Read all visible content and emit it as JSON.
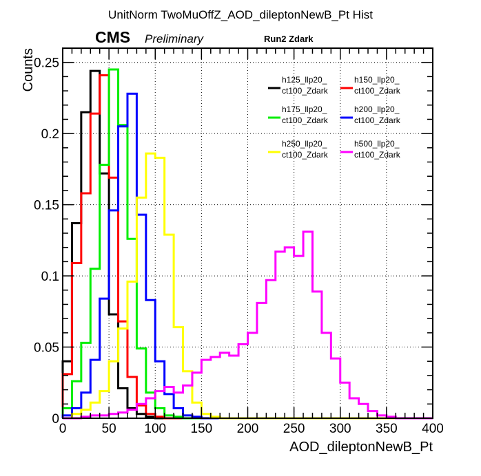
{
  "title": "UnitNorm TwoMuOffZ_AOD_dileptonNewB_Pt Hist",
  "cms_label": "CMS",
  "preliminary_label": "Preliminary",
  "run_label": "Run2 Zdark",
  "chart_data": {
    "type": "histogram-step",
    "title": "UnitNorm TwoMuOffZ_AOD_dileptonNewB_Pt Hist",
    "xlabel": "AOD_dileptonNewB_Pt",
    "ylabel": "Counts",
    "xlim": [
      0,
      400
    ],
    "ylim": [
      0,
      0.26
    ],
    "bin_width": 10,
    "x_ticks": [
      0,
      50,
      100,
      150,
      200,
      250,
      300,
      350,
      400
    ],
    "x_tick_labels": [
      "0",
      "50",
      "100",
      "150",
      "200",
      "250",
      "300",
      "350",
      "400"
    ],
    "y_ticks": [
      0,
      0.05,
      0.1,
      0.15,
      0.2,
      0.25
    ],
    "y_tick_labels": [
      "0",
      "0.05",
      "0.1",
      "0.15",
      "0.2",
      "0.25"
    ],
    "grid": true,
    "legend_position": "top-right",
    "series": [
      {
        "name": "h125_llp20_ct100_Zdark",
        "legend_line1": "h125_llp20_",
        "legend_line2": "ct100_Zdark",
        "color": "#000000",
        "values": [
          0.04,
          0.137,
          0.215,
          0.244,
          0.172,
          0.073,
          0.021,
          0.007,
          0.003,
          0.001,
          0.0,
          0.0,
          0.0,
          0.0,
          0.0,
          0.0,
          0.0,
          0.0,
          0.0,
          0.0,
          0.0,
          0.0,
          0.0,
          0.0,
          0.0,
          0.0,
          0.0,
          0.0,
          0.0,
          0.0,
          0.0,
          0.0,
          0.0,
          0.0,
          0.0,
          0.0,
          0.0,
          0.0,
          0.0,
          0.0
        ]
      },
      {
        "name": "h150_llp20_ct100_Zdark",
        "legend_line1": "h150_llp20_",
        "legend_line2": "ct100_Zdark",
        "color": "#ff0000",
        "values": [
          0.031,
          0.109,
          0.158,
          0.214,
          0.241,
          0.169,
          0.068,
          0.029,
          0.009,
          0.003,
          0.001,
          0.0,
          0.0,
          0.0,
          0.0,
          0.0,
          0.0,
          0.0,
          0.0,
          0.0,
          0.0,
          0.0,
          0.0,
          0.0,
          0.0,
          0.0,
          0.0,
          0.0,
          0.0,
          0.0,
          0.0,
          0.0,
          0.0,
          0.0,
          0.0,
          0.0,
          0.0,
          0.0,
          0.0,
          0.0
        ]
      },
      {
        "name": "h175_llp20_ct100_Zdark",
        "legend_line1": "h175_llp20_",
        "legend_line2": "ct100_Zdark",
        "color": "#00ee00",
        "values": [
          0.007,
          0.026,
          0.053,
          0.105,
          0.178,
          0.245,
          0.206,
          0.126,
          0.049,
          0.018,
          0.007,
          0.002,
          0.001,
          0.0,
          0.0,
          0.0,
          0.0,
          0.0,
          0.0,
          0.0,
          0.0,
          0.0,
          0.0,
          0.0,
          0.0,
          0.0,
          0.0,
          0.0,
          0.0,
          0.0,
          0.0,
          0.0,
          0.0,
          0.0,
          0.0,
          0.0,
          0.0,
          0.0,
          0.0,
          0.0
        ]
      },
      {
        "name": "h200_llp20_ct100_Zdark",
        "legend_line1": "h200_llp20_",
        "legend_line2": "ct100_Zdark",
        "color": "#0000ff",
        "values": [
          0.002,
          0.007,
          0.018,
          0.041,
          0.084,
          0.146,
          0.205,
          0.228,
          0.143,
          0.083,
          0.04,
          0.017,
          0.007,
          0.002,
          0.001,
          0.0,
          0.0,
          0.0,
          0.0,
          0.0,
          0.0,
          0.0,
          0.0,
          0.0,
          0.0,
          0.0,
          0.0,
          0.0,
          0.0,
          0.0,
          0.0,
          0.0,
          0.0,
          0.0,
          0.0,
          0.0,
          0.0,
          0.0,
          0.0,
          0.0
        ]
      },
      {
        "name": "h250_llp20_ct100_Zdark",
        "legend_line1": "h250_llp20_",
        "legend_line2": "ct100_Zdark",
        "color": "#ffff00",
        "values": [
          0.0,
          0.003,
          0.006,
          0.011,
          0.019,
          0.04,
          0.063,
          0.096,
          0.155,
          0.186,
          0.183,
          0.129,
          0.064,
          0.033,
          0.011,
          0.003,
          0.001,
          0.0,
          0.0,
          0.0,
          0.0,
          0.0,
          0.0,
          0.0,
          0.0,
          0.0,
          0.0,
          0.0,
          0.0,
          0.0,
          0.0,
          0.0,
          0.0,
          0.0,
          0.0,
          0.0,
          0.0,
          0.0,
          0.0,
          0.0
        ]
      },
      {
        "name": "h500_llp20_ct100_Zdark",
        "legend_line1": "h500_llp20_",
        "legend_line2": "ct100_Zdark",
        "color": "#ff00ff",
        "values": [
          0.0,
          0.0,
          0.001,
          0.002,
          0.002,
          0.003,
          0.004,
          0.006,
          0.01,
          0.014,
          0.019,
          0.022,
          0.018,
          0.023,
          0.032,
          0.041,
          0.043,
          0.046,
          0.044,
          0.052,
          0.06,
          0.081,
          0.097,
          0.117,
          0.12,
          0.114,
          0.131,
          0.089,
          0.06,
          0.042,
          0.025,
          0.014,
          0.01,
          0.005,
          0.002,
          0.001,
          0.0,
          0.0,
          0.0,
          0.0
        ]
      }
    ]
  }
}
